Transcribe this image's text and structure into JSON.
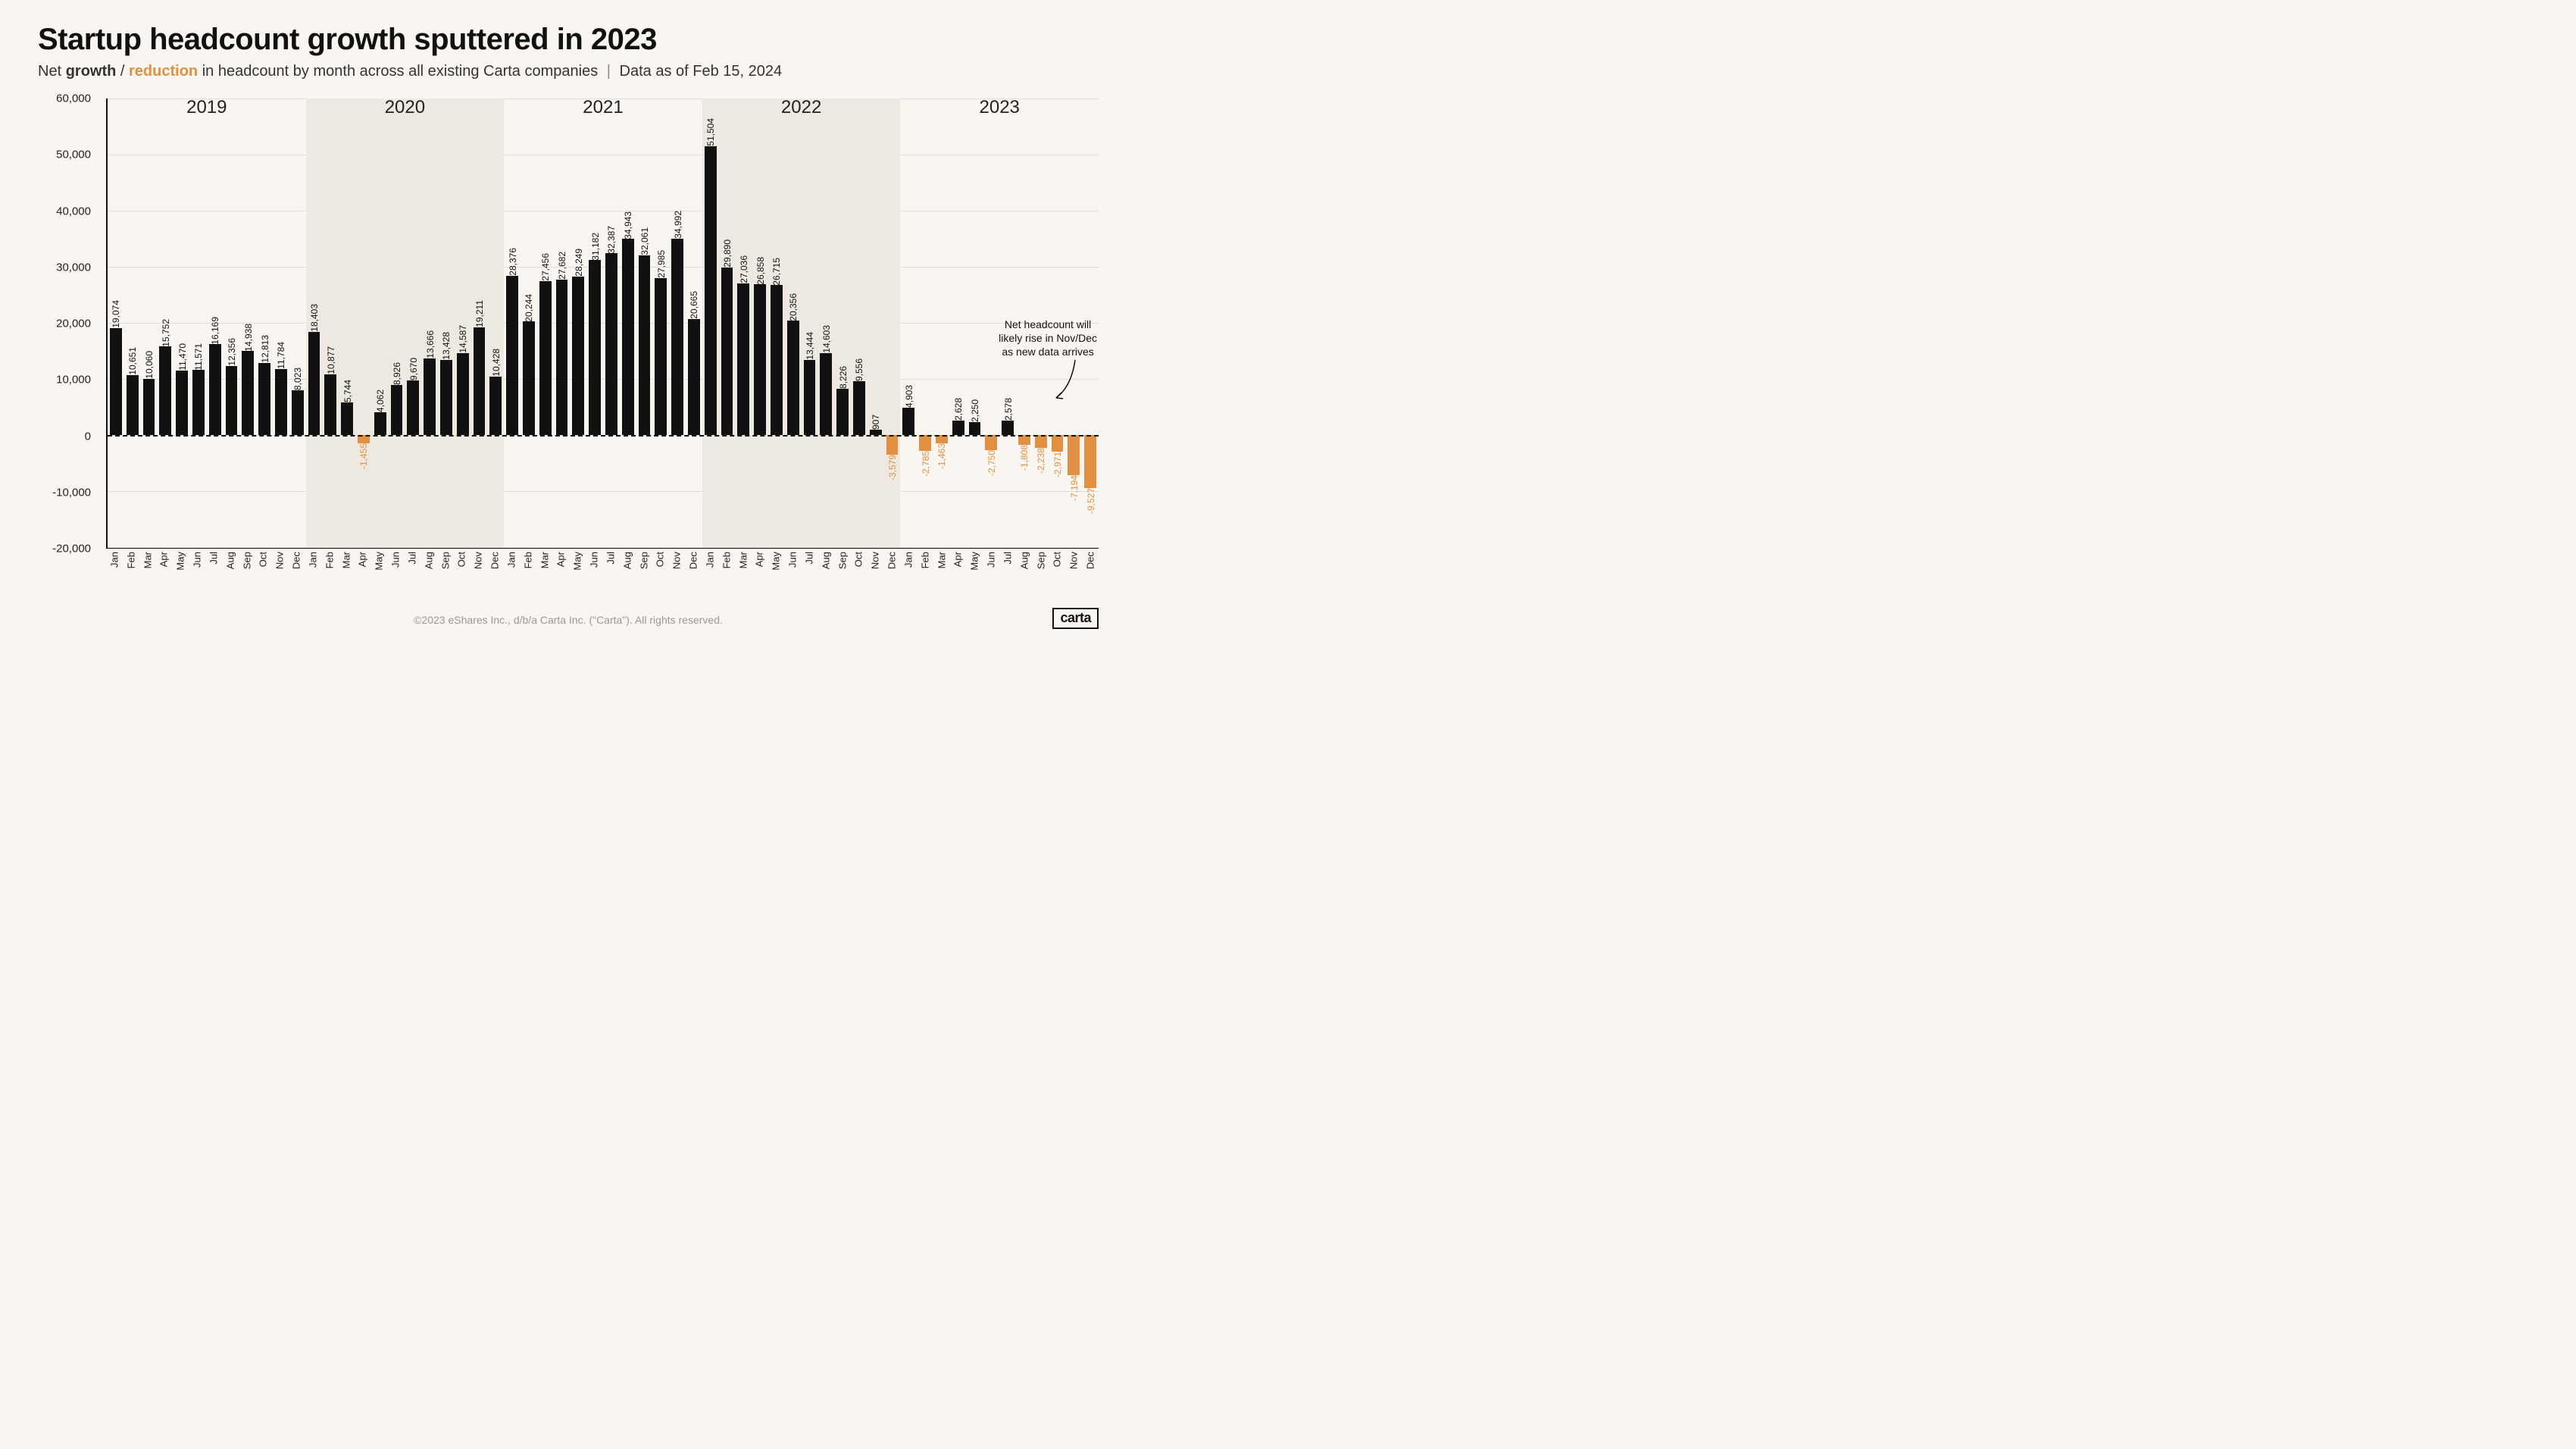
{
  "title": "Startup headcount growth sputtered in 2023",
  "subtitle": {
    "prefix": "Net ",
    "growth": "growth",
    "slash": " / ",
    "reduction": "reduction",
    "mid": " in headcount by month across all existing Carta companies",
    "sep": "|",
    "asof": "Data as of Feb 15, 2024"
  },
  "footer": "©2023 eShares Inc., d/b/a Carta Inc. (\"Carta\"). All rights reserved.",
  "logo": "carta",
  "annotation": {
    "text": "Net headcount will\nlikely rise in Nov/Dec\nas new data arrives"
  },
  "chart": {
    "type": "bar",
    "ylim": [
      -20000,
      60000
    ],
    "yticks": [
      -20000,
      -10000,
      0,
      10000,
      20000,
      30000,
      40000,
      50000,
      60000
    ],
    "ytick_labels": [
      "-20,000",
      "-10,000",
      "0",
      "10,000",
      "20,000",
      "30,000",
      "40,000",
      "50,000",
      "60,000"
    ],
    "background_color": "#f9f6f1",
    "band_color": "#eee9e0",
    "grid_color": "#dddddd",
    "pos_color": "#111111",
    "neg_color": "#e09040",
    "bar_width_ratio": 0.72,
    "years": [
      {
        "label": "2019",
        "start": 0,
        "end": 12,
        "shaded": false
      },
      {
        "label": "2020",
        "start": 12,
        "end": 24,
        "shaded": true
      },
      {
        "label": "2021",
        "start": 24,
        "end": 36,
        "shaded": false
      },
      {
        "label": "2022",
        "start": 36,
        "end": 48,
        "shaded": true
      },
      {
        "label": "2023",
        "start": 48,
        "end": 60,
        "shaded": false
      }
    ],
    "months": [
      "Jan",
      "Feb",
      "Mar",
      "Apr",
      "May",
      "Jun",
      "Jul",
      "Aug",
      "Sep",
      "Oct",
      "Nov",
      "Dec",
      "Jan",
      "Feb",
      "Mar",
      "Apr",
      "May",
      "Jun",
      "Jul",
      "Aug",
      "Sep",
      "Oct",
      "Nov",
      "Dec",
      "Jan",
      "Feb",
      "Mar",
      "Apr",
      "May",
      "Jun",
      "Jul",
      "Aug",
      "Sep",
      "Oct",
      "Nov",
      "Dec",
      "Jan",
      "Feb",
      "Mar",
      "Apr",
      "May",
      "Jun",
      "Jul",
      "Aug",
      "Sep",
      "Oct",
      "Nov",
      "Dec",
      "Jan",
      "Feb",
      "Mar",
      "Apr",
      "May",
      "Jun",
      "Jul",
      "Aug",
      "Sep",
      "Oct",
      "Nov",
      "Dec"
    ],
    "values": [
      19074,
      10651,
      10060,
      15752,
      11470,
      11571,
      16169,
      12356,
      14938,
      12813,
      11784,
      8023,
      18403,
      10877,
      5744,
      -1455,
      4062,
      8926,
      9670,
      13666,
      13428,
      14587,
      19211,
      10428,
      28376,
      20244,
      27456,
      27682,
      28249,
      31182,
      32387,
      34943,
      32061,
      27985,
      34992,
      20665,
      51504,
      29890,
      27036,
      26858,
      26715,
      20356,
      13444,
      14603,
      8226,
      9556,
      907,
      -3579,
      4903,
      -2785,
      -1463,
      2628,
      2250,
      -2750,
      2578,
      -1808,
      -2238,
      -2971,
      -7194,
      -9527
    ],
    "value_labels": [
      "19,074",
      "10,651",
      "10,060",
      "15,752",
      "11,470",
      "11,571",
      "16,169",
      "12,356",
      "14,938",
      "12,813",
      "11,784",
      "8,023",
      "18,403",
      "10,877",
      "5,744",
      "-1,455",
      "4,062",
      "8,926",
      "9,670",
      "13,666",
      "13,428",
      "14,587",
      "19,211",
      "10,428",
      "28,376",
      "20,244",
      "27,456",
      "27,682",
      "28,249",
      "31,182",
      "32,387",
      "34,943",
      "32,061",
      "27,985",
      "34,992",
      "20,665",
      "51,504",
      "29,890",
      "27,036",
      "26,858",
      "26,715",
      "20,356",
      "13,444",
      "14,603",
      "8,226",
      "9,556",
      "907",
      "-3,579",
      "4,903",
      "-2,785",
      "-1,463",
      "2,628",
      "2,250",
      "-2,750",
      "2,578",
      "-1,808",
      "-2,238",
      "-2,971",
      "-7,194",
      "-9,527"
    ]
  }
}
